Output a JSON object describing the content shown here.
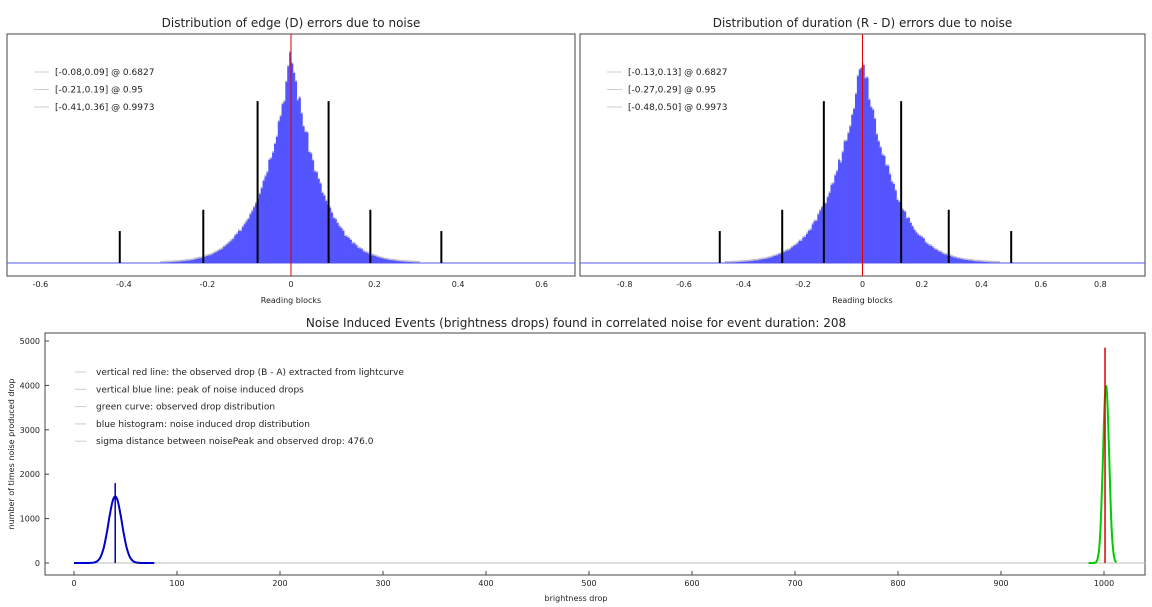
{
  "chart_data": [
    {
      "type": "bar",
      "title": "Distribution of edge (D) errors due to noise",
      "xlabel": "Reading blocks",
      "ylabel": "",
      "xlim": [
        -0.68,
        0.68
      ],
      "xticks": [
        "-0.6",
        "-0.4",
        "-0.2",
        "0",
        "0.2",
        "0.4",
        "0.6"
      ],
      "xtick_values": [
        -0.6,
        -0.4,
        -0.2,
        0,
        0.2,
        0.4,
        0.6
      ],
      "histogram": {
        "center": 0,
        "scale": 0.075,
        "color": "#5555ff"
      },
      "red_line": 0,
      "intervals": [
        {
          "label": "[-0.08,0.09] @ 0.6827",
          "lo": -0.08,
          "hi": 0.09,
          "rel_height": 0.76
        },
        {
          "label": "[-0.21,0.19] @ 0.95",
          "lo": -0.21,
          "hi": 0.19,
          "rel_height": 0.25
        },
        {
          "label": "[-0.41,0.36] @ 0.9973",
          "lo": -0.41,
          "hi": 0.36,
          "rel_height": 0.15
        }
      ]
    },
    {
      "type": "bar",
      "title": "Distribution of duration (R - D) errors due to noise",
      "xlabel": "Reading blocks",
      "ylabel": "",
      "xlim": [
        -0.95,
        0.95
      ],
      "xticks": [
        "-0.8",
        "-0.6",
        "-0.4",
        "-0.2",
        "0",
        "0.2",
        "0.4",
        "0.6",
        "0.8"
      ],
      "xtick_values": [
        -0.8,
        -0.6,
        -0.4,
        -0.2,
        0,
        0.2,
        0.4,
        0.6,
        0.8
      ],
      "histogram": {
        "center": 0,
        "scale": 0.11,
        "color": "#5555ff"
      },
      "red_line": 0,
      "intervals": [
        {
          "label": "[-0.13,0.13] @ 0.6827",
          "lo": -0.13,
          "hi": 0.13,
          "rel_height": 0.76
        },
        {
          "label": "[-0.27,0.29] @ 0.95",
          "lo": -0.27,
          "hi": 0.29,
          "rel_height": 0.25
        },
        {
          "label": "[-0.48,0.50] @ 0.9973",
          "lo": -0.48,
          "hi": 0.5,
          "rel_height": 0.15
        }
      ]
    },
    {
      "type": "line",
      "title": "Noise Induced Events (brightness drops) found in correlated noise for event duration: 208",
      "xlabel": "brightness drop",
      "ylabel": "number of times noise produced drop",
      "xlim": [
        -28,
        1040
      ],
      "ylim": [
        -300,
        5200
      ],
      "xticks": [
        "0",
        "100",
        "200",
        "300",
        "400",
        "500",
        "600",
        "700",
        "800",
        "900",
        "1000"
      ],
      "xtick_values": [
        0,
        100,
        200,
        300,
        400,
        500,
        600,
        700,
        800,
        900,
        1000
      ],
      "yticks": [
        "0",
        "1000",
        "2000",
        "3000",
        "4000",
        "5000"
      ],
      "ytick_values": [
        0,
        1000,
        2000,
        3000,
        4000,
        5000
      ],
      "legend": [
        "vertical red line: the observed drop (B - A) extracted from lightcurve",
        "vertical blue line: peak of noise induced drops",
        "green curve: observed drop distribution",
        "blue histogram: noise induced drop distribution",
        "sigma distance between noisePeak and observed drop: 476.0"
      ],
      "series": [
        {
          "name": "noise induced drop distribution",
          "color": "#0000cc",
          "center": 40,
          "sigma": 6.5,
          "peak": 1500,
          "range": [
            0,
            78
          ]
        },
        {
          "name": "observed drop distribution",
          "color": "#00cc00",
          "center": 1002,
          "sigma": 3,
          "peak": 4000,
          "range": [
            985,
            1012
          ]
        }
      ],
      "blue_line": {
        "x": 40,
        "y": 1800
      },
      "red_line": {
        "x": 1001,
        "y": 4850
      }
    }
  ]
}
